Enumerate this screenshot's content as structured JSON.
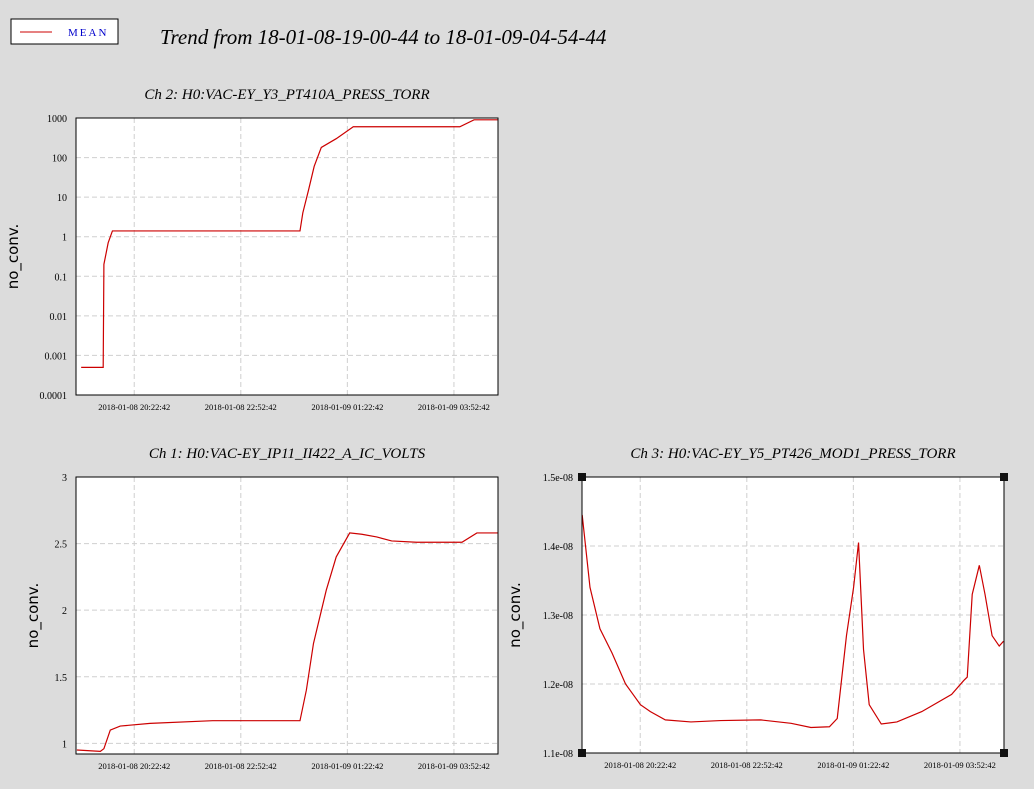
{
  "title": "Trend from 18-01-08-19-00-44 to 18-01-09-04-54-44",
  "legend_text_color": "#0000cc",
  "chart_data": [
    {
      "type": "line",
      "title": "Ch 2: H0:VAC-EY_Y3_PT410A_PRESS_TORR",
      "y_label": "no_conv.",
      "log_y": true,
      "grid": true,
      "xlim": [
        "2018-01-08 19:00:44",
        "2018-01-09 04:54:44"
      ],
      "xticks": [
        "2018-01-08 20:22:42",
        "2018-01-08 22:52:42",
        "2018-01-09 01:22:42",
        "2018-01-09 03:52:42"
      ],
      "ylim": [
        0.0001,
        1000
      ],
      "yticks": [
        0.0001,
        0.001,
        0.01,
        0.1,
        1,
        10,
        100,
        1000
      ],
      "x": [
        "2018-01-08 19:08:00",
        "2018-01-08 19:39:00",
        "2018-01-08 19:40:00",
        "2018-01-08 19:46:00",
        "2018-01-08 19:52:00",
        "2018-01-09 00:16:00",
        "2018-01-09 00:20:00",
        "2018-01-09 00:28:00",
        "2018-01-09 00:36:00",
        "2018-01-09 00:46:00",
        "2018-01-09 01:07:00",
        "2018-01-09 01:31:00",
        "2018-01-09 04:01:00",
        "2018-01-09 04:21:00",
        "2018-01-09 04:54:00"
      ],
      "series": [
        {
          "name": "MEAN",
          "color": "#cc0000",
          "values": [
            0.0005,
            0.0005,
            0.2,
            0.7,
            1.4,
            1.4,
            4,
            15,
            60,
            180,
            300,
            600,
            600,
            900,
            900
          ]
        }
      ]
    },
    {
      "type": "line",
      "title": "Ch 1: H0:VAC-EY_IP11_II422_A_IC_VOLTS",
      "y_label": "no_conv.",
      "log_y": false,
      "grid": true,
      "xlim": [
        "2018-01-08 19:00:44",
        "2018-01-09 04:54:44"
      ],
      "xticks": [
        "2018-01-08 20:22:42",
        "2018-01-08 22:52:42",
        "2018-01-09 01:22:42",
        "2018-01-09 03:52:42"
      ],
      "ylim": [
        0.92,
        3
      ],
      "yticks": [
        1,
        1.5,
        2,
        2.5,
        3
      ],
      "x": [
        "2018-01-08 19:02:00",
        "2018-01-08 19:35:00",
        "2018-01-08 19:40:00",
        "2018-01-08 19:49:00",
        "2018-01-08 20:03:00",
        "2018-01-08 20:45:00",
        "2018-01-08 22:13:00",
        "2018-01-09 00:16:00",
        "2018-01-09 00:25:00",
        "2018-01-09 00:35:00",
        "2018-01-09 00:53:00",
        "2018-01-09 01:07:00",
        "2018-01-09 01:26:00",
        "2018-01-09 01:43:00",
        "2018-01-09 02:04:00",
        "2018-01-09 02:25:00",
        "2018-01-09 03:00:00",
        "2018-01-09 04:04:00",
        "2018-01-09 04:25:00",
        "2018-01-09 04:54:00"
      ],
      "series": [
        {
          "name": "MEAN",
          "color": "#cc0000",
          "values": [
            0.95,
            0.94,
            0.96,
            1.1,
            1.13,
            1.15,
            1.17,
            1.17,
            1.4,
            1.75,
            2.15,
            2.4,
            2.58,
            2.57,
            2.55,
            2.52,
            2.51,
            2.51,
            2.58,
            2.58
          ]
        }
      ]
    },
    {
      "type": "line",
      "title": "Ch 3: H0:VAC-EY_Y5_PT426_MOD1_PRESS_TORR",
      "y_label": "no_conv.",
      "log_y": false,
      "grid": true,
      "xlim": [
        "2018-01-08 19:00:44",
        "2018-01-09 04:54:44"
      ],
      "xticks": [
        "2018-01-08 20:22:42",
        "2018-01-08 22:52:42",
        "2018-01-09 01:22:42",
        "2018-01-09 03:52:42"
      ],
      "ylim": [
        1.1e-08,
        1.5e-08
      ],
      "yticks": [
        {
          "value": 1.1e-08,
          "label": "1.1e-08"
        },
        {
          "value": 1.2e-08,
          "label": "1.2e-08"
        },
        {
          "value": 1.3e-08,
          "label": "1.3e-08"
        },
        {
          "value": 1.4e-08,
          "label": "1.4e-08"
        },
        {
          "value": 1.5e-08,
          "label": "1.5e-08"
        }
      ],
      "x": [
        "2018-01-08 19:01:00",
        "2018-01-08 19:12:00",
        "2018-01-08 19:26:00",
        "2018-01-08 19:43:00",
        "2018-01-08 20:02:00",
        "2018-01-08 20:23:00",
        "2018-01-08 20:37:00",
        "2018-01-08 20:58:00",
        "2018-01-08 21:34:00",
        "2018-01-08 22:16:00",
        "2018-01-08 23:12:00",
        "2018-01-08 23:55:00",
        "2018-01-09 00:23:00",
        "2018-01-09 00:49:00",
        "2018-01-09 01:00:00",
        "2018-01-09 01:13:00",
        "2018-01-09 01:23:00",
        "2018-01-09 01:30:00",
        "2018-01-09 01:37:00",
        "2018-01-09 01:45:00",
        "2018-01-09 02:02:00",
        "2018-01-09 02:24:00",
        "2018-01-09 02:59:00",
        "2018-01-09 03:41:00",
        "2018-01-09 03:58:00",
        "2018-01-09 04:03:00",
        "2018-01-09 04:10:00",
        "2018-01-09 04:20:00",
        "2018-01-09 04:28:00",
        "2018-01-09 04:38:00",
        "2018-01-09 04:48:00",
        "2018-01-09 04:54:00"
      ],
      "series": [
        {
          "name": "MEAN",
          "color": "#cc0000",
          "values": [
            1.445e-08,
            1.34e-08,
            1.28e-08,
            1.245e-08,
            1.2e-08,
            1.17e-08,
            1.16e-08,
            1.148e-08,
            1.145e-08,
            1.147e-08,
            1.148e-08,
            1.143e-08,
            1.137e-08,
            1.138e-08,
            1.15e-08,
            1.27e-08,
            1.34e-08,
            1.405e-08,
            1.25e-08,
            1.17e-08,
            1.142e-08,
            1.145e-08,
            1.16e-08,
            1.185e-08,
            1.205e-08,
            1.21e-08,
            1.33e-08,
            1.372e-08,
            1.33e-08,
            1.27e-08,
            1.255e-08,
            1.262e-08
          ]
        }
      ]
    }
  ]
}
